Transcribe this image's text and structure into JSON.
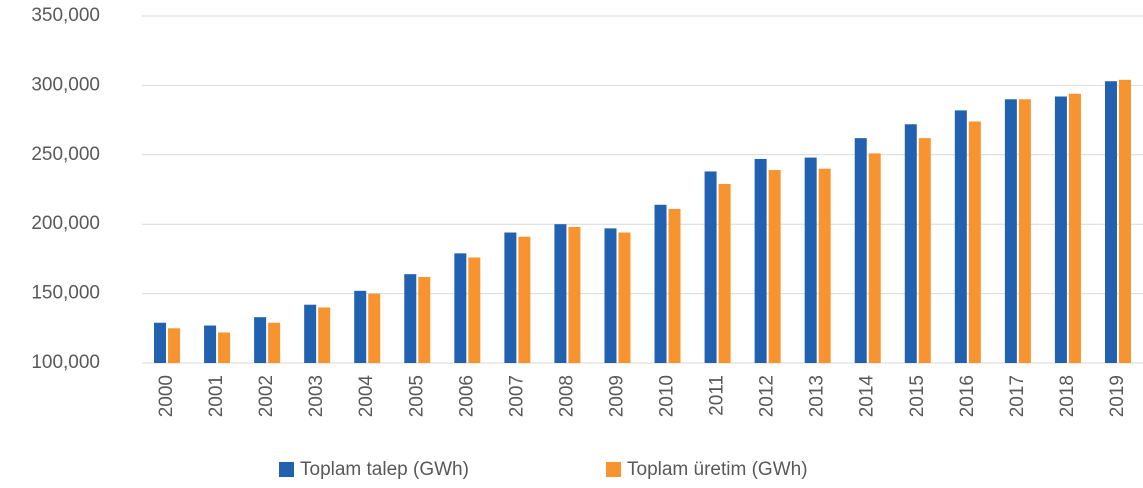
{
  "chart_data": {
    "type": "bar",
    "categories": [
      "2000",
      "2001",
      "2002",
      "2003",
      "2004",
      "2005",
      "2006",
      "2007",
      "2008",
      "2009",
      "2010",
      "2011",
      "2012",
      "2013",
      "2014",
      "2015",
      "2016",
      "2017",
      "2018",
      "2019"
    ],
    "series": [
      {
        "name": "Toplam talep (GWh)",
        "color": "#2161b0",
        "values": [
          129000,
          127000,
          133000,
          142000,
          152000,
          164000,
          179000,
          194000,
          200000,
          197000,
          214000,
          238000,
          247000,
          248000,
          262000,
          272000,
          282000,
          290000,
          292000,
          303000
        ]
      },
      {
        "name": "Toplam üretim (GWh)",
        "color": "#f7942f",
        "values": [
          125000,
          122000,
          129000,
          140000,
          150000,
          162000,
          176000,
          191000,
          198000,
          194000,
          211000,
          229000,
          239000,
          240000,
          251000,
          262000,
          274000,
          290000,
          294000,
          304000
        ]
      }
    ],
    "ylim": [
      100000,
      350000
    ],
    "yticks": [
      {
        "value": 100000,
        "label": "100,000"
      },
      {
        "value": 150000,
        "label": "150,000"
      },
      {
        "value": 200000,
        "label": "200,000"
      },
      {
        "value": 250000,
        "label": "250,000"
      },
      {
        "value": 300000,
        "label": "300,000"
      },
      {
        "value": 350000,
        "label": "350,000"
      }
    ],
    "grid": true,
    "legend": "bottom"
  }
}
